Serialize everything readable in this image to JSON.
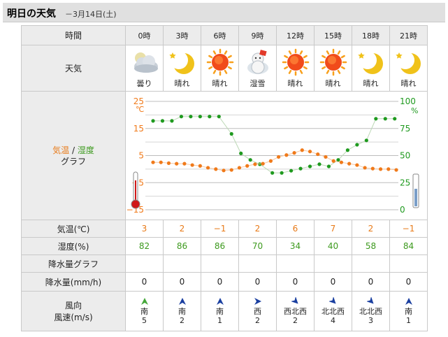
{
  "header": {
    "title": "明日の天気",
    "date": "－3月14日(土)"
  },
  "labels": {
    "time": "時間",
    "weather": "天気",
    "graph_temp": "気温",
    "graph_sep": " / ",
    "graph_hum": "湿度",
    "graph_word": "グラフ",
    "temperature": "気温(℃)",
    "humidity": "湿度(%)",
    "rain_graph": "降水量グラフ",
    "rain": "降水量(mm/h)",
    "wind_dir": "風向",
    "wind_speed": "風速(m/s)"
  },
  "hours": [
    {
      "time": "0時",
      "icon": "cloudy-night-icon",
      "weather": "曇り",
      "temp": "3",
      "humidity": "82",
      "rain": "0",
      "wind_dir": "南",
      "wind_speed": "5",
      "arrow": "up",
      "arrow_color": "#45a83a"
    },
    {
      "time": "3時",
      "icon": "moon-star-icon",
      "weather": "晴れ",
      "temp": "2",
      "humidity": "86",
      "rain": "0",
      "wind_dir": "南",
      "wind_speed": "2",
      "arrow": "up",
      "arrow_color": "#1a3fa0"
    },
    {
      "time": "6時",
      "icon": "sun-icon",
      "weather": "晴れ",
      "temp": "−1",
      "humidity": "86",
      "rain": "0",
      "wind_dir": "南",
      "wind_speed": "1",
      "arrow": "up",
      "arrow_color": "#1a3fa0"
    },
    {
      "time": "9時",
      "icon": "snowman-icon",
      "weather": "湿雪",
      "temp": "2",
      "humidity": "70",
      "rain": "0",
      "wind_dir": "西",
      "wind_speed": "2",
      "arrow": "right",
      "arrow_color": "#1a3fa0"
    },
    {
      "time": "12時",
      "icon": "sun-icon",
      "weather": "晴れ",
      "temp": "6",
      "humidity": "34",
      "rain": "0",
      "wind_dir": "西北西",
      "wind_speed": "2",
      "arrow": "down-right",
      "arrow_color": "#1a3fa0"
    },
    {
      "time": "15時",
      "icon": "sun-icon",
      "weather": "晴れ",
      "temp": "7",
      "humidity": "40",
      "rain": "0",
      "wind_dir": "北北西",
      "wind_speed": "4",
      "arrow": "down-right",
      "arrow_color": "#1a3fa0"
    },
    {
      "time": "18時",
      "icon": "moon-star-icon",
      "weather": "晴れ",
      "temp": "2",
      "humidity": "58",
      "rain": "0",
      "wind_dir": "北北西",
      "wind_speed": "3",
      "arrow": "down-right",
      "arrow_color": "#1a3fa0"
    },
    {
      "time": "21時",
      "icon": "moon-star-icon",
      "weather": "晴れ",
      "temp": "−1",
      "humidity": "84",
      "rain": "0",
      "wind_dir": "南",
      "wind_speed": "1",
      "arrow": "up",
      "arrow_color": "#1a3fa0"
    }
  ],
  "chart_data": {
    "type": "line",
    "left_unit": "℃",
    "right_unit": "%",
    "left_ticks": [
      "25",
      "15",
      "5",
      "−5",
      "−15"
    ],
    "right_ticks": [
      "100",
      "75",
      "50",
      "25",
      "0"
    ],
    "ylim_left": [
      -15,
      25
    ],
    "ylim_right": [
      0,
      100
    ],
    "series": [
      {
        "name": "気温",
        "axis": "left",
        "color": "#f07a1a",
        "values": [
          2.5,
          2.5,
          2.2,
          2.0,
          2.0,
          1.5,
          1.2,
          0.5,
          0.0,
          -0.5,
          -0.3,
          0.5,
          1.2,
          1.8,
          2.0,
          3.0,
          4.5,
          5.2,
          6.0,
          7.0,
          6.5,
          5.5,
          4.5,
          3.0,
          2.5,
          2.0,
          1.5,
          0.5,
          0.2,
          0.0,
          0.0,
          -0.3
        ]
      },
      {
        "name": "湿度",
        "axis": "right",
        "color": "#1f9a1f",
        "values": [
          82,
          82,
          82,
          86,
          86,
          86,
          86,
          86,
          70,
          52,
          46,
          42,
          34,
          34,
          36,
          38,
          40,
          42,
          40,
          46,
          55,
          60,
          64,
          84,
          84,
          84
        ]
      }
    ],
    "temp_x": [
      0.0,
      0.5,
      1.0,
      1.5,
      2.0,
      2.5,
      3.0,
      3.5,
      4.0,
      4.5,
      5.0,
      5.5,
      6.0,
      6.5,
      7.0,
      7.5,
      8.0,
      8.5,
      9.0,
      9.5,
      10.0,
      10.5,
      11.0,
      11.5,
      12.0,
      12.5,
      13.0,
      13.5,
      14.0,
      14.5,
      15.0,
      15.5
    ],
    "hum_x": [
      0.0,
      0.6,
      1.2,
      1.8,
      2.4,
      3.0,
      3.6,
      4.2,
      5.0,
      5.6,
      6.2,
      6.8,
      7.6,
      8.2,
      8.8,
      9.4,
      10.0,
      10.6,
      11.2,
      11.8,
      12.4,
      13.0,
      13.6,
      14.2,
      14.8,
      15.4
    ]
  }
}
